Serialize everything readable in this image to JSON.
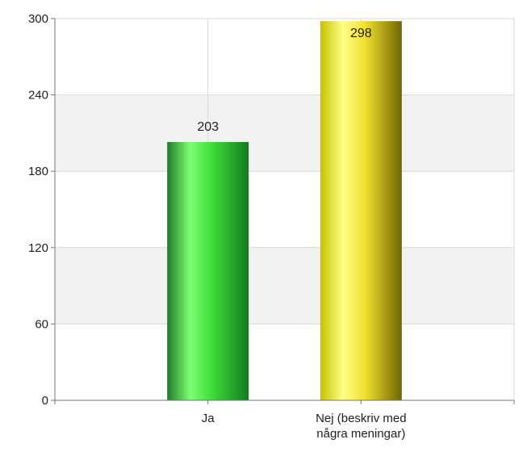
{
  "chart_data": {
    "type": "bar",
    "title": "",
    "xlabel": "",
    "ylabel": "",
    "categories": [
      [
        "Ja"
      ],
      [
        "Nej (beskriv med",
        "några meningar)"
      ]
    ],
    "values": [
      203,
      298
    ],
    "data_labels": [
      "203",
      "298"
    ],
    "ylim": [
      0,
      300
    ],
    "yticks": [
      0,
      60,
      120,
      180,
      240,
      300
    ],
    "ytick_labels": [
      "0",
      "60",
      "120",
      "180",
      "240",
      "300"
    ],
    "grid": true,
    "legend": "none",
    "colors": {
      "bar_gradients": [
        [
          "#1f7a2a",
          "#7dff73",
          "#3fdc3a",
          "#137a20"
        ],
        [
          "#c8c000",
          "#ffff88",
          "#f0e030",
          "#6f6600"
        ]
      ],
      "band_alt": "#f2f2f2",
      "grid": "#d9d9d9",
      "axis": "#777777"
    }
  }
}
